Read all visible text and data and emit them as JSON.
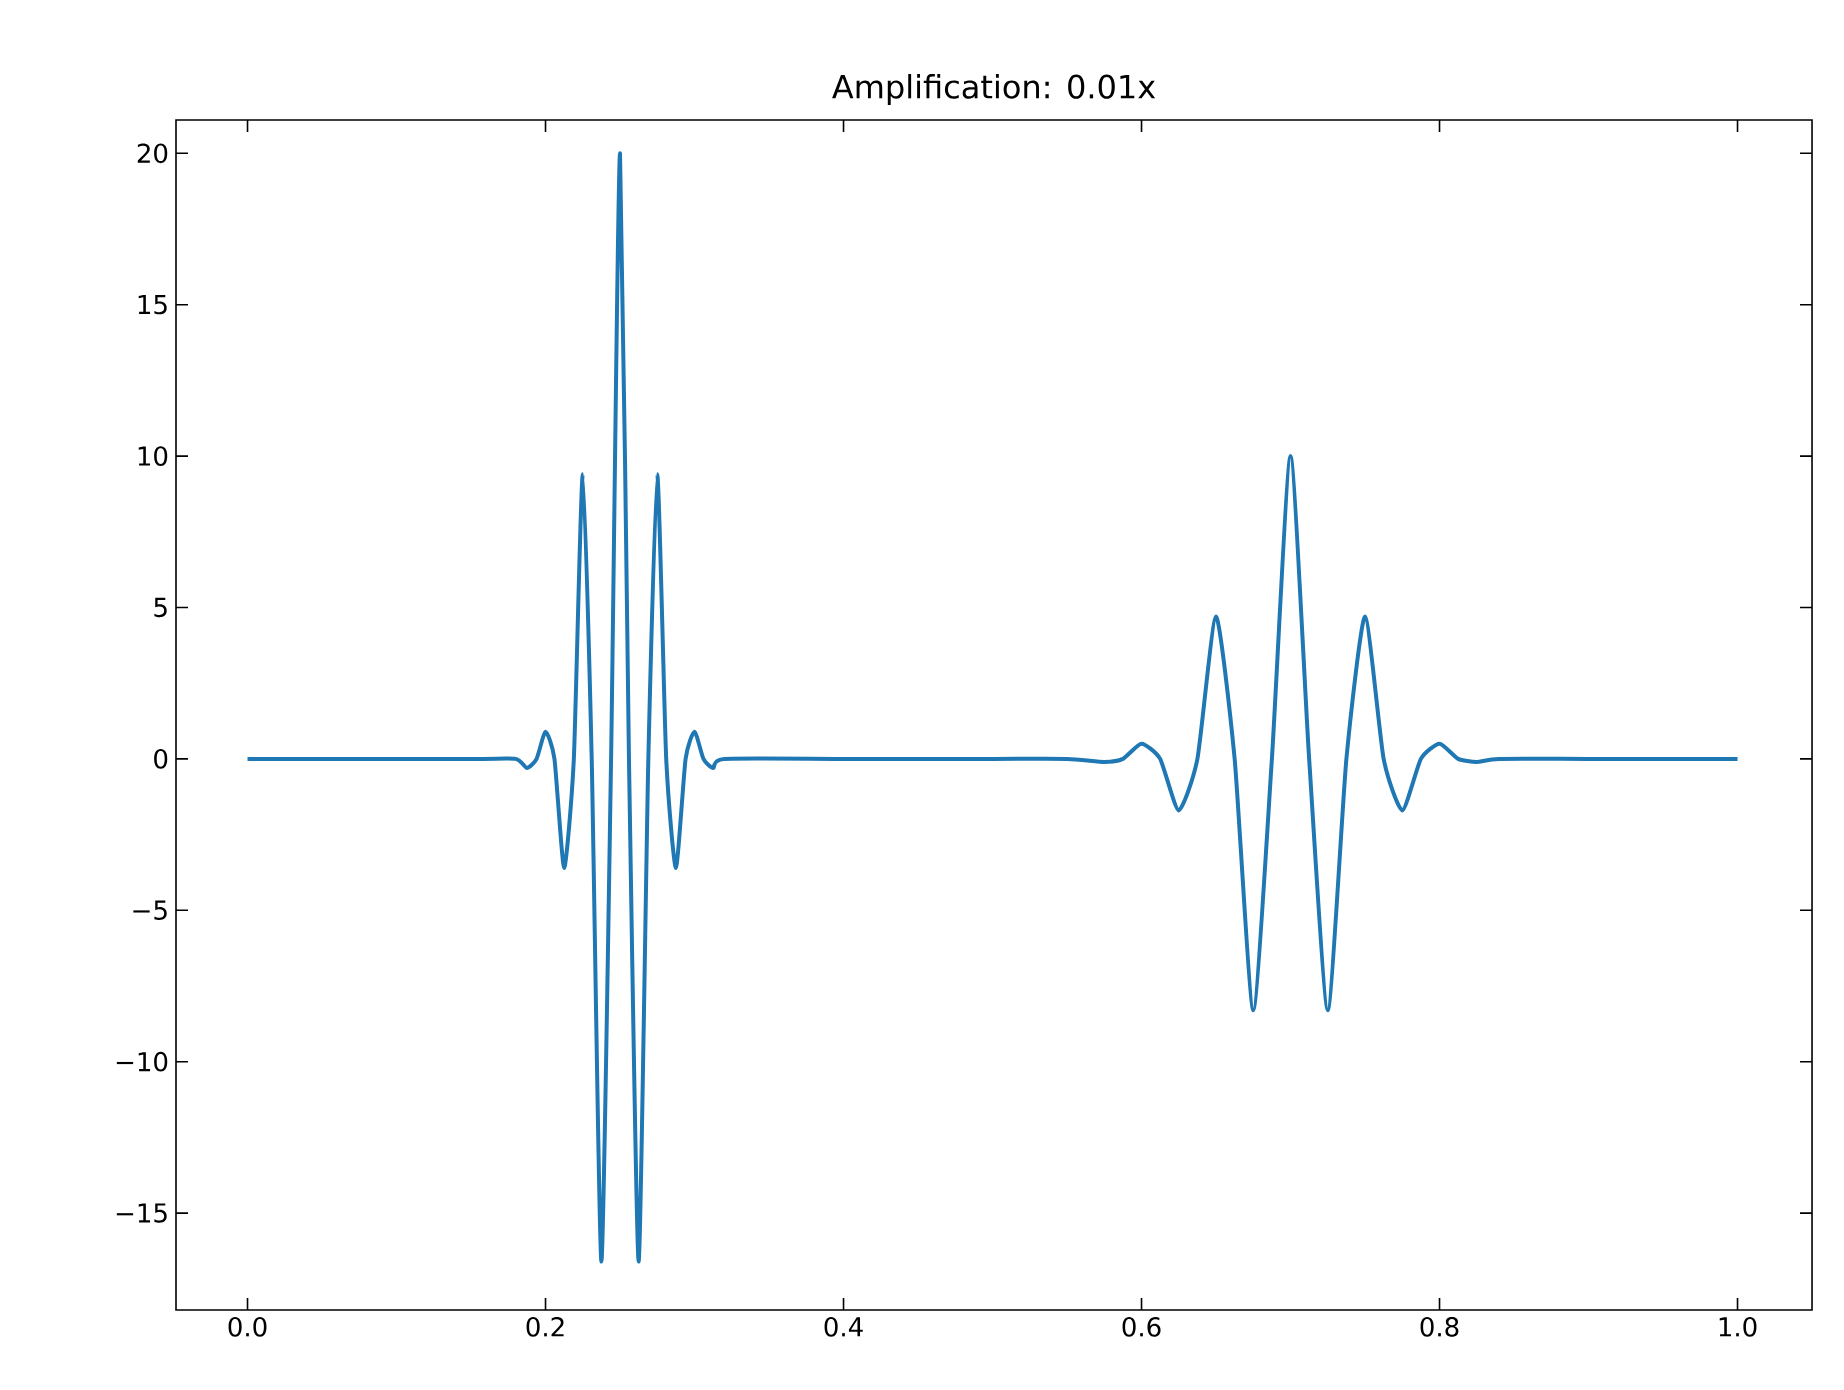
{
  "chart_data": {
    "type": "line",
    "title": "Amplification: 0.01x",
    "series": [
      {
        "color": "#1f77b4",
        "x": [
          0.0,
          0.15,
          0.18,
          0.1875,
          0.194,
          0.2,
          0.206,
          0.2125,
          0.219,
          0.225,
          0.231,
          0.2375,
          0.244,
          0.25,
          0.256,
          0.2625,
          0.269,
          0.275,
          0.281,
          0.2875,
          0.294,
          0.3,
          0.306,
          0.3125,
          0.32,
          0.4,
          0.5,
          0.55,
          0.575,
          0.5875,
          0.6,
          0.6125,
          0.625,
          0.6375,
          0.65,
          0.6625,
          0.675,
          0.6875,
          0.7,
          0.7125,
          0.725,
          0.7375,
          0.75,
          0.7625,
          0.775,
          0.7875,
          0.8,
          0.8125,
          0.825,
          0.84,
          0.9,
          1.0
        ],
        "values": [
          0,
          0,
          0,
          -0.3,
          0,
          0.9,
          0,
          -3.6,
          0,
          9.4,
          0,
          -16.6,
          0,
          20,
          0,
          -16.6,
          0,
          9.4,
          0,
          -3.6,
          0,
          0.9,
          0,
          -0.3,
          0,
          0,
          0,
          0,
          -0.1,
          0,
          0.5,
          0,
          -1.7,
          0,
          4.7,
          0,
          -8.3,
          0,
          10,
          0,
          -8.3,
          0,
          4.7,
          0,
          -1.7,
          0,
          0.5,
          0,
          -0.1,
          0,
          0,
          0
        ]
      }
    ],
    "xlim": [
      -0.048,
      1.05
    ],
    "ylim": [
      -18.2,
      21.1
    ],
    "xticks": [
      {
        "value": 0,
        "label": "0.0"
      },
      0.2,
      0.4,
      0.6,
      0.8,
      {
        "value": 1,
        "label": "1.0"
      }
    ],
    "yticks": [
      {
        "value": -15,
        "label": "−15"
      },
      {
        "value": -10,
        "label": "−10"
      },
      {
        "value": -5,
        "label": "−5"
      },
      0,
      5,
      10,
      15,
      20
    ],
    "grid": false,
    "legend": false,
    "marker": "none",
    "line_style": "solid"
  }
}
